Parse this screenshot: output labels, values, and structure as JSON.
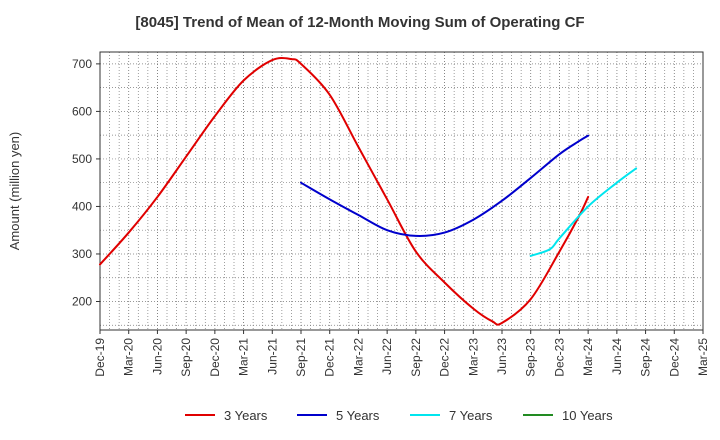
{
  "chart_data": {
    "type": "line",
    "title": "[8045]  Trend of Mean of 12-Month Moving Sum of Operating CF",
    "xlabel": "",
    "ylabel": "Amount (million yen)",
    "ylim": [
      140,
      725
    ],
    "yticks": [
      200,
      300,
      400,
      500,
      600,
      700
    ],
    "grid": true,
    "legend_position": "bottom",
    "categories": [
      "Dec-19",
      "Mar-20",
      "Jun-20",
      "Sep-20",
      "Dec-20",
      "Mar-21",
      "Jun-21",
      "Sep-21",
      "Dec-21",
      "Mar-22",
      "Jun-22",
      "Sep-22",
      "Dec-22",
      "Mar-23",
      "Jun-23",
      "Sep-23",
      "Dec-23",
      "Mar-24",
      "Jun-24",
      "Sep-24",
      "Dec-24",
      "Mar-25"
    ],
    "series": [
      {
        "name": "3 Years",
        "color": "#e00000",
        "points": [
          [
            0,
            278
          ],
          [
            1,
            345
          ],
          [
            2,
            420
          ],
          [
            3,
            505
          ],
          [
            4,
            590
          ],
          [
            5,
            665
          ],
          [
            6,
            708
          ],
          [
            6.67,
            710
          ],
          [
            7,
            700
          ],
          [
            8,
            635
          ],
          [
            9,
            525
          ],
          [
            10,
            415
          ],
          [
            11,
            305
          ],
          [
            12,
            240
          ],
          [
            13,
            185
          ],
          [
            13.67,
            158
          ],
          [
            14,
            155
          ],
          [
            15,
            205
          ],
          [
            16,
            305
          ],
          [
            16.67,
            378
          ],
          [
            17,
            420
          ]
        ]
      },
      {
        "name": "5 Years",
        "color": "#0000cc",
        "points": [
          [
            7,
            450
          ],
          [
            8,
            415
          ],
          [
            9,
            382
          ],
          [
            10,
            350
          ],
          [
            11,
            338
          ],
          [
            12,
            345
          ],
          [
            13,
            372
          ],
          [
            14,
            412
          ],
          [
            15,
            460
          ],
          [
            16,
            510
          ],
          [
            16.67,
            537
          ],
          [
            17,
            549
          ]
        ]
      },
      {
        "name": "7 Years",
        "color": "#00e5ee",
        "points": [
          [
            15,
            296
          ],
          [
            15.67,
            310
          ],
          [
            16,
            333
          ],
          [
            17,
            400
          ],
          [
            18,
            450
          ],
          [
            18.67,
            480
          ]
        ]
      },
      {
        "name": "10 Years",
        "color": "#228b22",
        "points": []
      }
    ]
  }
}
